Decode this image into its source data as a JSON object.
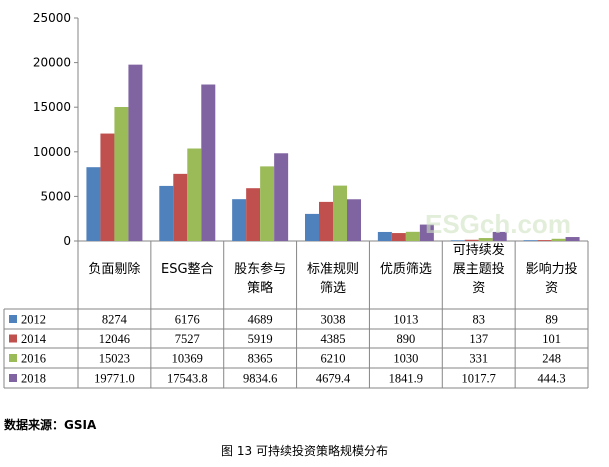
{
  "chart_data": {
    "type": "bar",
    "categories": [
      [
        "负面剔除"
      ],
      [
        "ESG整合"
      ],
      [
        "股东参与",
        "策略"
      ],
      [
        "标准规则",
        "筛选"
      ],
      [
        "优质筛选"
      ],
      [
        "可持续发",
        "展主题投",
        "资"
      ],
      [
        "影响力投",
        "资"
      ]
    ],
    "series": [
      {
        "name": "2012",
        "color": "#4f81bd",
        "values": [
          8274,
          6176,
          4689,
          3038,
          1013,
          83,
          89
        ],
        "labels": [
          "8274",
          "6176",
          "4689",
          "3038",
          "1013",
          "83",
          "89"
        ]
      },
      {
        "name": "2014",
        "color": "#c0504d",
        "values": [
          12046,
          7527,
          5919,
          4385,
          890,
          137,
          101
        ],
        "labels": [
          "12046",
          "7527",
          "5919",
          "4385",
          "890",
          "137",
          "101"
        ]
      },
      {
        "name": "2016",
        "color": "#9bbb59",
        "values": [
          15023,
          10369,
          8365,
          6210,
          1030,
          331,
          248
        ],
        "labels": [
          "15023",
          "10369",
          "8365",
          "6210",
          "1030",
          "331",
          "248"
        ]
      },
      {
        "name": "2018",
        "color": "#8064a2",
        "values": [
          19771.0,
          17543.8,
          9834.6,
          4679.4,
          1841.9,
          1017.7,
          444.3
        ],
        "labels": [
          "19771.0",
          "17543.8",
          "9834.6",
          "4679.4",
          "1841.9",
          "1017.7",
          "444.3"
        ]
      }
    ],
    "yticks": [
      "0",
      "5000",
      "10000",
      "15000",
      "20000",
      "25000"
    ],
    "ylim": [
      0,
      25000
    ],
    "legend": "data-table"
  },
  "watermark": "ESGch.com",
  "source_note": "数据来源：GSIA",
  "caption": "图 13 可持续投资策略规模分布"
}
